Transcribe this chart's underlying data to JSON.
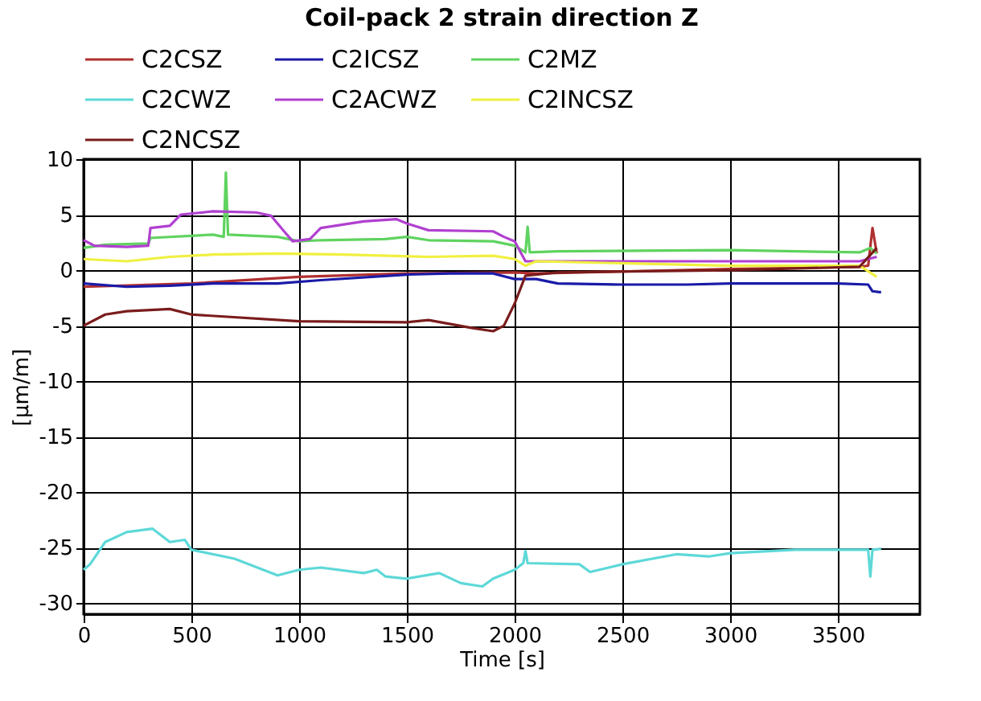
{
  "chart_data": {
    "type": "line",
    "title": "Coil-pack 2 strain direction Z",
    "xlabel": "Time [s]",
    "ylabel": "[µm/m]",
    "xlim": [
      0,
      3880
    ],
    "xticks": [
      0,
      500,
      1000,
      1500,
      2000,
      2500,
      3000,
      3500
    ],
    "ylim": [
      -31,
      10
    ],
    "yticks": [
      -30,
      -25,
      -20,
      -15,
      -10,
      -5,
      0,
      5,
      10
    ],
    "grid": true,
    "legend": "top",
    "line_style": "solid",
    "series": [
      {
        "name": "C2CSZ",
        "color": "#b03030",
        "x": [
          0,
          500,
          1000,
          1500,
          2000,
          2100,
          3000,
          3600,
          3640,
          3660,
          3680
        ],
        "values": [
          -1.5,
          -1.2,
          -0.6,
          -0.3,
          -0.2,
          -0.3,
          0.1,
          0.3,
          0.4,
          3.8,
          1.5
        ]
      },
      {
        "name": "C2ICSZ",
        "color": "#1a1aa8",
        "x": [
          0,
          200,
          400,
          600,
          900,
          1100,
          1500,
          1700,
          1900,
          2000,
          2100,
          2200,
          2500,
          2800,
          3000,
          3500,
          3640,
          3660,
          3700
        ],
        "values": [
          -1.2,
          -1.5,
          -1.4,
          -1.2,
          -1.2,
          -0.9,
          -0.4,
          -0.3,
          -0.3,
          -0.8,
          -0.8,
          -1.2,
          -1.3,
          -1.3,
          -1.2,
          -1.2,
          -1.3,
          -1.9,
          -2
        ]
      },
      {
        "name": "C2MZ",
        "color": "#5fd35f",
        "x": [
          0,
          100,
          300,
          310,
          600,
          650,
          660,
          670,
          900,
          1000,
          1100,
          1400,
          1500,
          1600,
          1900,
          2000,
          2050,
          2060,
          2070,
          2200,
          3000,
          3600,
          3650,
          3680
        ],
        "values": [
          2.0,
          2.3,
          2.4,
          2.9,
          3.2,
          3.0,
          8.8,
          3.2,
          3.0,
          2.6,
          2.7,
          2.8,
          3.0,
          2.7,
          2.6,
          2.2,
          1.6,
          3.9,
          1.6,
          1.7,
          1.8,
          1.6,
          2.0,
          1.5
        ]
      },
      {
        "name": "C2CWZ",
        "color": "#5ed8d8",
        "x": [
          0,
          30,
          100,
          200,
          320,
          400,
          470,
          500,
          700,
          900,
          1000,
          1100,
          1300,
          1360,
          1400,
          1500,
          1650,
          1750,
          1850,
          1900,
          2000,
          2040,
          2050,
          2060,
          2300,
          2350,
          2500,
          2750,
          2900,
          3000,
          3300,
          3500,
          3640,
          3650,
          3660,
          3700
        ],
        "values": [
          -27,
          -26.5,
          -24.5,
          -23.6,
          -23.3,
          -24.5,
          -24.3,
          -25.2,
          -26,
          -27.5,
          -27,
          -26.8,
          -27.3,
          -27,
          -27.6,
          -27.8,
          -27.3,
          -28.2,
          -28.5,
          -27.8,
          -27,
          -26.4,
          -25.3,
          -26.4,
          -26.5,
          -27.2,
          -26.5,
          -25.6,
          -25.8,
          -25.5,
          -25.2,
          -25.2,
          -25.2,
          -27.6,
          -25.2,
          -25.1
        ]
      },
      {
        "name": "C2ACWZ",
        "color": "#b040d0",
        "x": [
          0,
          50,
          200,
          300,
          310,
          400,
          450,
          600,
          800,
          870,
          930,
          970,
          1050,
          1100,
          1300,
          1450,
          1500,
          1600,
          1900,
          1950,
          2000,
          2050,
          3600,
          3680
        ],
        "values": [
          2.7,
          2.2,
          2.1,
          2.2,
          3.8,
          4,
          5,
          5.3,
          5.2,
          4.9,
          3.5,
          2.6,
          2.8,
          3.8,
          4.4,
          4.6,
          4.2,
          3.6,
          3.5,
          3.0,
          2.6,
          0.8,
          0.8,
          1.2
        ]
      },
      {
        "name": "C2INCSZ",
        "color": "#f0f040",
        "x": [
          0,
          200,
          400,
          600,
          900,
          1200,
          1600,
          1900,
          2000,
          2050,
          2100,
          3000,
          3600,
          3680
        ],
        "values": [
          1.0,
          0.8,
          1.2,
          1.4,
          1.5,
          1.4,
          1.2,
          1.3,
          1.0,
          0.4,
          0.8,
          0.4,
          0.4,
          -0.6
        ]
      },
      {
        "name": "C2NCSZ",
        "color": "#7a1c1c",
        "x": [
          0,
          100,
          200,
          400,
          500,
          1000,
          1500,
          1600,
          1800,
          1900,
          1950,
          2000,
          2050,
          2200,
          3000,
          3600,
          3680
        ],
        "values": [
          -5,
          -4,
          -3.7,
          -3.5,
          -4.0,
          -4.6,
          -4.7,
          -4.5,
          -5.2,
          -5.5,
          -5,
          -3,
          -0.5,
          -0.2,
          0,
          0.3,
          2
        ]
      }
    ]
  }
}
